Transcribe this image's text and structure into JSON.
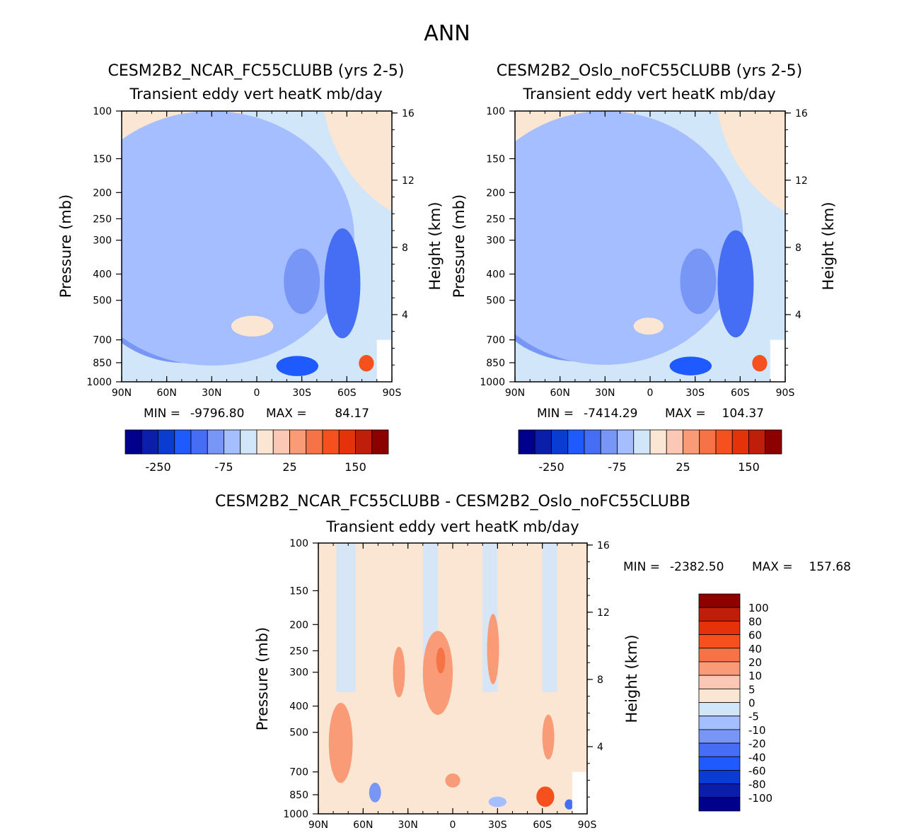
{
  "page_title": "ANN",
  "colors": {
    "main_scale": [
      "#00008c",
      "#0a1eaa",
      "#0a3cd2",
      "#1e5aff",
      "#466ef5",
      "#7896f5",
      "#a5beff",
      "#d2e6fa",
      "#fae6d2",
      "#fac8b4",
      "#fa9b78",
      "#f57346",
      "#f5501e",
      "#e6320a",
      "#be1e0a",
      "#8c0000"
    ],
    "diff_scale": [
      "#00008c",
      "#0a1eaa",
      "#0a3cd2",
      "#1e5aff",
      "#466ef5",
      "#7896f5",
      "#a5beff",
      "#d2e6fa",
      "#fae6d2",
      "#fac8b4",
      "#fa9b78",
      "#f57346",
      "#f5501e",
      "#e6320a",
      "#be1e0a",
      "#8c0000"
    ]
  },
  "chart_data": [
    {
      "type": "contour",
      "title": "CESM2B2_NCAR_FC55CLUBB (yrs 2-5)",
      "subtitle": "Transient eddy vert heatK mb/day",
      "ylabel": "Pressure (mb)",
      "ylabel_right": "Height (km)",
      "x_ticks": [
        "90N",
        "60N",
        "30N",
        "0",
        "30S",
        "60S",
        "90S"
      ],
      "y_ticks": [
        "100",
        "150",
        "200",
        "250",
        "300",
        "400",
        "500",
        "700",
        "850",
        "1000"
      ],
      "y_values": [
        100,
        150,
        200,
        250,
        300,
        400,
        500,
        700,
        850,
        1000
      ],
      "height_ticks": [
        "16",
        "12",
        "8",
        "4"
      ],
      "height_values": [
        16,
        12,
        8,
        4
      ],
      "min_label": "MIN =",
      "min_value": "-9796.80",
      "max_label": "MAX =",
      "max_value": "84.17",
      "colorbar_labels": [
        "-250",
        "-75",
        "25",
        "150"
      ],
      "blobs": [
        {
          "lat": 45,
          "p": 620,
          "rx": 24,
          "rp": 300,
          "level": 0
        },
        {
          "lat": 47,
          "p": 600,
          "rx": 34,
          "rp": 380,
          "level": 1
        },
        {
          "lat": 55,
          "p": 560,
          "rx": 48,
          "rp": 480,
          "level": 3
        },
        {
          "lat": 48,
          "p": 500,
          "rx": 64,
          "rp": 640,
          "level": 5
        },
        {
          "lat": 30,
          "p": 420,
          "rx": 95,
          "rp": 820,
          "level": 6
        },
        {
          "lat": -56,
          "p": 470,
          "rx": 5,
          "rp": 210,
          "level": 2
        },
        {
          "lat": -57,
          "p": 460,
          "rx": 12,
          "rp": 420,
          "level": 4
        },
        {
          "lat": -30,
          "p": 430,
          "rx": 12,
          "rp": 240,
          "level": 5
        },
        {
          "lat": -27,
          "p": 870,
          "rx": 14,
          "rp": 150,
          "level": 3
        },
        {
          "lat": 3,
          "p": 620,
          "rx": 14,
          "rp": 110,
          "level": 8
        },
        {
          "lat": -73,
          "p": 850,
          "rx": 5,
          "rp": 120,
          "level": 12
        }
      ]
    },
    {
      "type": "contour",
      "title": "CESM2B2_Oslo_noFC55CLUBB (yrs 2-5)",
      "subtitle": "Transient eddy vert heatK mb/day",
      "ylabel": "Pressure (mb)",
      "ylabel_right": "Height (km)",
      "x_ticks": [
        "90N",
        "60N",
        "30N",
        "0",
        "30S",
        "60S",
        "90S"
      ],
      "y_ticks": [
        "100",
        "150",
        "200",
        "250",
        "300",
        "400",
        "500",
        "700",
        "850",
        "1000"
      ],
      "y_values": [
        100,
        150,
        200,
        250,
        300,
        400,
        500,
        700,
        850,
        1000
      ],
      "height_ticks": [
        "16",
        "12",
        "8",
        "4"
      ],
      "height_values": [
        16,
        12,
        8,
        4
      ],
      "min_label": "MIN =",
      "min_value": "-7414.29",
      "max_label": "MAX =",
      "max_value": "104.37",
      "colorbar_labels": [
        "-250",
        "-75",
        "25",
        "150"
      ],
      "blobs": [
        {
          "lat": 46,
          "p": 630,
          "rx": 22,
          "rp": 290,
          "level": 0
        },
        {
          "lat": 47,
          "p": 600,
          "rx": 32,
          "rp": 370,
          "level": 1
        },
        {
          "lat": 55,
          "p": 560,
          "rx": 46,
          "rp": 470,
          "level": 3
        },
        {
          "lat": 48,
          "p": 500,
          "rx": 62,
          "rp": 620,
          "level": 5
        },
        {
          "lat": 30,
          "p": 420,
          "rx": 92,
          "rp": 810,
          "level": 6
        },
        {
          "lat": -56,
          "p": 470,
          "rx": 5,
          "rp": 200,
          "level": 2
        },
        {
          "lat": -57,
          "p": 460,
          "rx": 12,
          "rp": 410,
          "level": 4
        },
        {
          "lat": -32,
          "p": 430,
          "rx": 12,
          "rp": 240,
          "level": 5
        },
        {
          "lat": -27,
          "p": 870,
          "rx": 14,
          "rp": 140,
          "level": 3
        },
        {
          "lat": 1,
          "p": 620,
          "rx": 10,
          "rp": 90,
          "level": 8
        },
        {
          "lat": -73,
          "p": 850,
          "rx": 5,
          "rp": 120,
          "level": 12
        }
      ]
    },
    {
      "type": "contour",
      "title": "CESM2B2_NCAR_FC55CLUBB - CESM2B2_Oslo_noFC55CLUBB",
      "subtitle": "Transient eddy vert heatK mb/day",
      "ylabel": "Pressure (mb)",
      "ylabel_right": "Height (km)",
      "x_ticks": [
        "90N",
        "60N",
        "30N",
        "0",
        "30S",
        "60S",
        "90S"
      ],
      "y_ticks": [
        "100",
        "150",
        "200",
        "250",
        "300",
        "400",
        "500",
        "700",
        "850",
        "1000"
      ],
      "y_values": [
        100,
        150,
        200,
        250,
        300,
        400,
        500,
        700,
        850,
        1000
      ],
      "height_ticks": [
        "16",
        "12",
        "8",
        "4"
      ],
      "height_values": [
        16,
        12,
        8,
        4
      ],
      "min_label": "MIN =",
      "min_value": "-2382.50",
      "max_label": "MAX =",
      "max_value": "157.68",
      "colorbar_labels": [
        "100",
        "80",
        "60",
        "40",
        "20",
        "10",
        "5",
        "0",
        "-5",
        "-10",
        "-20",
        "-40",
        "-60",
        "-80",
        "-100"
      ],
      "blobs": [
        {
          "lat": 75,
          "p": 560,
          "rx": 8,
          "rp": 380,
          "level": 10
        },
        {
          "lat": 10,
          "p": 310,
          "rx": 10,
          "rp": 220,
          "level": 10
        },
        {
          "lat": 8,
          "p": 270,
          "rx": 3,
          "rp": 60,
          "level": 11
        },
        {
          "lat": 36,
          "p": 300,
          "rx": 4,
          "rp": 130,
          "level": 10
        },
        {
          "lat": -27,
          "p": 250,
          "rx": 4,
          "rp": 150,
          "level": 10
        },
        {
          "lat": -64,
          "p": 520,
          "rx": 4,
          "rp": 200,
          "level": 10
        },
        {
          "lat": -62,
          "p": 860,
          "rx": 6,
          "rp": 150,
          "level": 12
        },
        {
          "lat": 0,
          "p": 750,
          "rx": 5,
          "rp": 90,
          "level": 10
        },
        {
          "lat": 52,
          "p": 830,
          "rx": 4,
          "rp": 140,
          "level": 5
        },
        {
          "lat": -30,
          "p": 900,
          "rx": 6,
          "rp": 80,
          "level": 6
        },
        {
          "lat": -78,
          "p": 920,
          "rx": 3,
          "rp": 80,
          "level": 4
        }
      ]
    }
  ]
}
